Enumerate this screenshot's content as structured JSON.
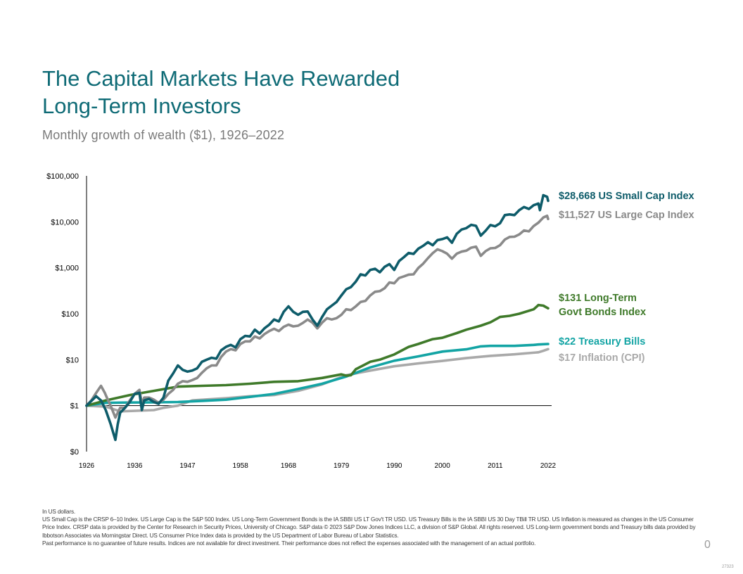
{
  "header": {
    "title_line1": "The Capital Markets Have Rewarded",
    "title_line2": "Long-Term Investors",
    "subtitle": "Monthly growth of wealth ($1), 1926–2022"
  },
  "chart_data": {
    "type": "line",
    "y_scale": "log",
    "y_ticks": [
      {
        "value": 0.1,
        "label": "$0"
      },
      {
        "value": 1,
        "label": "$1"
      },
      {
        "value": 10,
        "label": "$10"
      },
      {
        "value": 100,
        "label": "$100"
      },
      {
        "value": 1000,
        "label": "$1,000"
      },
      {
        "value": 10000,
        "label": "$10,000"
      },
      {
        "value": 100000,
        "label": "$100,000"
      }
    ],
    "x_range": [
      1926,
      2022
    ],
    "x_ticks": [
      1926,
      1936,
      1947,
      1958,
      1968,
      1979,
      1990,
      2000,
      2011,
      2022
    ],
    "ylim": [
      0.1,
      100000
    ],
    "grid": false,
    "series": [
      {
        "name": "US Small Cap Index",
        "label_lines": [
          "$28,668 US Small Cap Index"
        ],
        "color": "#0e5c6a",
        "points": [
          [
            1926,
            1
          ],
          [
            1928,
            1.6
          ],
          [
            1929,
            1.3
          ],
          [
            1930,
            0.8
          ],
          [
            1931,
            0.4
          ],
          [
            1932,
            0.18
          ],
          [
            1932.5,
            0.4
          ],
          [
            1933,
            0.7
          ],
          [
            1934,
            0.9
          ],
          [
            1935,
            1.2
          ],
          [
            1936,
            1.8
          ],
          [
            1937,
            1.9
          ],
          [
            1937.5,
            0.8
          ],
          [
            1938,
            1.3
          ],
          [
            1939,
            1.4
          ],
          [
            1940,
            1.2
          ],
          [
            1941,
            1.1
          ],
          [
            1942,
            1.5
          ],
          [
            1943,
            3.5
          ],
          [
            1944,
            5
          ],
          [
            1945,
            7.5
          ],
          [
            1946,
            6
          ],
          [
            1947,
            5.5
          ],
          [
            1948,
            5.8
          ],
          [
            1949,
            6.5
          ],
          [
            1950,
            9
          ],
          [
            1951,
            10
          ],
          [
            1952,
            11
          ],
          [
            1953,
            10.5
          ],
          [
            1954,
            16
          ],
          [
            1955,
            19
          ],
          [
            1956,
            21
          ],
          [
            1957,
            18.5
          ],
          [
            1958,
            28
          ],
          [
            1959,
            33
          ],
          [
            1960,
            32
          ],
          [
            1961,
            45
          ],
          [
            1962,
            37
          ],
          [
            1963,
            48
          ],
          [
            1964,
            58
          ],
          [
            1965,
            75
          ],
          [
            1966,
            68
          ],
          [
            1967,
            110
          ],
          [
            1968,
            145
          ],
          [
            1969,
            110
          ],
          [
            1970,
            95
          ],
          [
            1971,
            110
          ],
          [
            1972,
            112
          ],
          [
            1973,
            75
          ],
          [
            1974,
            55
          ],
          [
            1975,
            85
          ],
          [
            1976,
            125
          ],
          [
            1977,
            150
          ],
          [
            1978,
            180
          ],
          [
            1979,
            250
          ],
          [
            1980,
            340
          ],
          [
            1981,
            380
          ],
          [
            1982,
            500
          ],
          [
            1983,
            720
          ],
          [
            1984,
            680
          ],
          [
            1985,
            900
          ],
          [
            1986,
            950
          ],
          [
            1987,
            800
          ],
          [
            1988,
            1050
          ],
          [
            1989,
            1200
          ],
          [
            1990,
            900
          ],
          [
            1991,
            1400
          ],
          [
            1992,
            1700
          ],
          [
            1993,
            2100
          ],
          [
            1994,
            2000
          ],
          [
            1995,
            2600
          ],
          [
            1996,
            3000
          ],
          [
            1997,
            3600
          ],
          [
            1998,
            3100
          ],
          [
            1999,
            4000
          ],
          [
            2000,
            4200
          ],
          [
            2001,
            4600
          ],
          [
            2002,
            3500
          ],
          [
            2003,
            5500
          ],
          [
            2004,
            6800
          ],
          [
            2005,
            7300
          ],
          [
            2006,
            8600
          ],
          [
            2007,
            8200
          ],
          [
            2008,
            5000
          ],
          [
            2009,
            6400
          ],
          [
            2010,
            8500
          ],
          [
            2011,
            8000
          ],
          [
            2012,
            9300
          ],
          [
            2013,
            14000
          ],
          [
            2014,
            14500
          ],
          [
            2015,
            14000
          ],
          [
            2016,
            18000
          ],
          [
            2017,
            21000
          ],
          [
            2018,
            19000
          ],
          [
            2019,
            23000
          ],
          [
            2020,
            25000
          ],
          [
            2020.3,
            18000
          ],
          [
            2021,
            38000
          ],
          [
            2021.8,
            35000
          ],
          [
            2022,
            28668
          ]
        ]
      },
      {
        "name": "US Large Cap Index",
        "label_lines": [
          "$11,527 US Large Cap Index"
        ],
        "color": "#8a8a8a",
        "points": [
          [
            1926,
            1
          ],
          [
            1927,
            1.3
          ],
          [
            1928,
            1.9
          ],
          [
            1929,
            2.7
          ],
          [
            1929.8,
            1.9
          ],
          [
            1930,
            1.7
          ],
          [
            1931,
            1
          ],
          [
            1932,
            0.55
          ],
          [
            1933,
            0.9
          ],
          [
            1934,
            0.9
          ],
          [
            1935,
            1.3
          ],
          [
            1936,
            1.8
          ],
          [
            1937,
            2.2
          ],
          [
            1937.5,
            1.1
          ],
          [
            1938,
            1.5
          ],
          [
            1939,
            1.5
          ],
          [
            1940,
            1.35
          ],
          [
            1941,
            1.15
          ],
          [
            1942,
            1.35
          ],
          [
            1943,
            1.8
          ],
          [
            1944,
            2.2
          ],
          [
            1945,
            3
          ],
          [
            1946,
            3.4
          ],
          [
            1947,
            3.3
          ],
          [
            1948,
            3.6
          ],
          [
            1949,
            4
          ],
          [
            1950,
            5.2
          ],
          [
            1951,
            6.5
          ],
          [
            1952,
            7.5
          ],
          [
            1953,
            7.5
          ],
          [
            1954,
            11.5
          ],
          [
            1955,
            15
          ],
          [
            1956,
            17
          ],
          [
            1957,
            16
          ],
          [
            1958,
            22
          ],
          [
            1959,
            25
          ],
          [
            1960,
            25
          ],
          [
            1961,
            32
          ],
          [
            1962,
            29
          ],
          [
            1963,
            36
          ],
          [
            1964,
            42
          ],
          [
            1965,
            47
          ],
          [
            1966,
            42
          ],
          [
            1967,
            52
          ],
          [
            1968,
            58
          ],
          [
            1969,
            53
          ],
          [
            1970,
            55
          ],
          [
            1971,
            63
          ],
          [
            1972,
            75
          ],
          [
            1973,
            64
          ],
          [
            1974,
            48
          ],
          [
            1975,
            64
          ],
          [
            1976,
            80
          ],
          [
            1977,
            75
          ],
          [
            1978,
            80
          ],
          [
            1979,
            95
          ],
          [
            1980,
            125
          ],
          [
            1981,
            120
          ],
          [
            1982,
            145
          ],
          [
            1983,
            180
          ],
          [
            1984,
            190
          ],
          [
            1985,
            250
          ],
          [
            1986,
            300
          ],
          [
            1987,
            310
          ],
          [
            1988,
            360
          ],
          [
            1989,
            480
          ],
          [
            1990,
            460
          ],
          [
            1991,
            600
          ],
          [
            1992,
            650
          ],
          [
            1993,
            710
          ],
          [
            1994,
            720
          ],
          [
            1995,
            990
          ],
          [
            1996,
            1220
          ],
          [
            1997,
            1620
          ],
          [
            1998,
            2080
          ],
          [
            1999,
            2520
          ],
          [
            2000,
            2300
          ],
          [
            2001,
            2020
          ],
          [
            2002,
            1580
          ],
          [
            2003,
            2030
          ],
          [
            2004,
            2250
          ],
          [
            2005,
            2360
          ],
          [
            2006,
            2740
          ],
          [
            2007,
            2890
          ],
          [
            2008,
            1820
          ],
          [
            2009,
            2300
          ],
          [
            2010,
            2650
          ],
          [
            2011,
            2700
          ],
          [
            2012,
            3100
          ],
          [
            2013,
            4100
          ],
          [
            2014,
            4700
          ],
          [
            2015,
            4750
          ],
          [
            2016,
            5300
          ],
          [
            2017,
            6500
          ],
          [
            2018,
            6200
          ],
          [
            2019,
            8100
          ],
          [
            2020,
            9600
          ],
          [
            2021,
            12400
          ],
          [
            2021.8,
            13500
          ],
          [
            2022,
            11527
          ]
        ]
      },
      {
        "name": "Long-Term Govt Bonds Index",
        "label_lines": [
          "$131 Long-Term",
          "Govt Bonds Index"
        ],
        "color": "#3f7a2a",
        "points": [
          [
            1926,
            1
          ],
          [
            1930,
            1.3
          ],
          [
            1935,
            1.7
          ],
          [
            1940,
            2.1
          ],
          [
            1945,
            2.6
          ],
          [
            1950,
            2.7
          ],
          [
            1955,
            2.8
          ],
          [
            1960,
            3.0
          ],
          [
            1965,
            3.3
          ],
          [
            1970,
            3.4
          ],
          [
            1975,
            4.0
          ],
          [
            1979,
            4.8
          ],
          [
            1980,
            4.5
          ],
          [
            1981,
            4.6
          ],
          [
            1982,
            6.2
          ],
          [
            1985,
            9
          ],
          [
            1987,
            10
          ],
          [
            1990,
            13
          ],
          [
            1993,
            19
          ],
          [
            1995,
            22
          ],
          [
            1998,
            28
          ],
          [
            2000,
            30
          ],
          [
            2003,
            38
          ],
          [
            2005,
            45
          ],
          [
            2008,
            55
          ],
          [
            2010,
            65
          ],
          [
            2012,
            85
          ],
          [
            2014,
            90
          ],
          [
            2016,
            100
          ],
          [
            2019,
            125
          ],
          [
            2020,
            155
          ],
          [
            2021,
            150
          ],
          [
            2022,
            131
          ]
        ]
      },
      {
        "name": "Treasury Bills",
        "label_lines": [
          "$22 Treasury Bills"
        ],
        "color": "#13a4a4",
        "points": [
          [
            1926,
            1
          ],
          [
            1930,
            1.15
          ],
          [
            1935,
            1.17
          ],
          [
            1940,
            1.18
          ],
          [
            1945,
            1.2
          ],
          [
            1950,
            1.27
          ],
          [
            1955,
            1.35
          ],
          [
            1960,
            1.55
          ],
          [
            1965,
            1.8
          ],
          [
            1970,
            2.3
          ],
          [
            1975,
            3.0
          ],
          [
            1980,
            4.3
          ],
          [
            1985,
            6.8
          ],
          [
            1990,
            9.5
          ],
          [
            1995,
            11.8
          ],
          [
            2000,
            15
          ],
          [
            2005,
            16.8
          ],
          [
            2008,
            19.5
          ],
          [
            2010,
            20
          ],
          [
            2015,
            20
          ],
          [
            2019,
            21
          ],
          [
            2020,
            21.4
          ],
          [
            2022,
            22
          ]
        ]
      },
      {
        "name": "Inflation (CPI)",
        "label_lines": [
          "$17 Inflation (CPI)"
        ],
        "color": "#a9a9a9",
        "points": [
          [
            1926,
            1
          ],
          [
            1930,
            0.95
          ],
          [
            1933,
            0.75
          ],
          [
            1940,
            0.8
          ],
          [
            1942,
            0.9
          ],
          [
            1945,
            1.0
          ],
          [
            1948,
            1.3
          ],
          [
            1955,
            1.45
          ],
          [
            1960,
            1.6
          ],
          [
            1965,
            1.7
          ],
          [
            1970,
            2.1
          ],
          [
            1975,
            2.9
          ],
          [
            1980,
            4.6
          ],
          [
            1985,
            5.8
          ],
          [
            1990,
            7.2
          ],
          [
            1995,
            8.3
          ],
          [
            2000,
            9.4
          ],
          [
            2005,
            10.8
          ],
          [
            2010,
            12.1
          ],
          [
            2015,
            13.1
          ],
          [
            2020,
            14.5
          ],
          [
            2021,
            15.6
          ],
          [
            2022,
            17
          ]
        ]
      }
    ]
  },
  "footnotes": [
    "In US dollars.",
    "US Small Cap is the CRSP 6–10 Index. US Large Cap is the S&P 500 Index. US Long-Term Government Bonds is the IA SBBI US LT Gov't TR USD. US Treasury Bills is the IA SBBI US 30 Day TBill TR USD. US Inflation is measured as changes in the US Consumer Price Index. CRSP data is provided by the Center for Research in Security Prices, University of Chicago. S&P data © 2023 S&P Dow Jones Indices LLC, a division of S&P Global. All rights reserved. US Long-term government bonds and Treasury bills data provided by Ibbotson Associates via Morningstar Direct. US Consumer Price Index data is provided by the US Department of Labor Bureau of Labor Statistics.",
    "Past performance is no guarantee of future results. Indices are not available for direct investment. Their performance does not reflect the expenses associated with the management of an actual portfolio."
  ],
  "page_number": "0",
  "doc_code": "27323"
}
